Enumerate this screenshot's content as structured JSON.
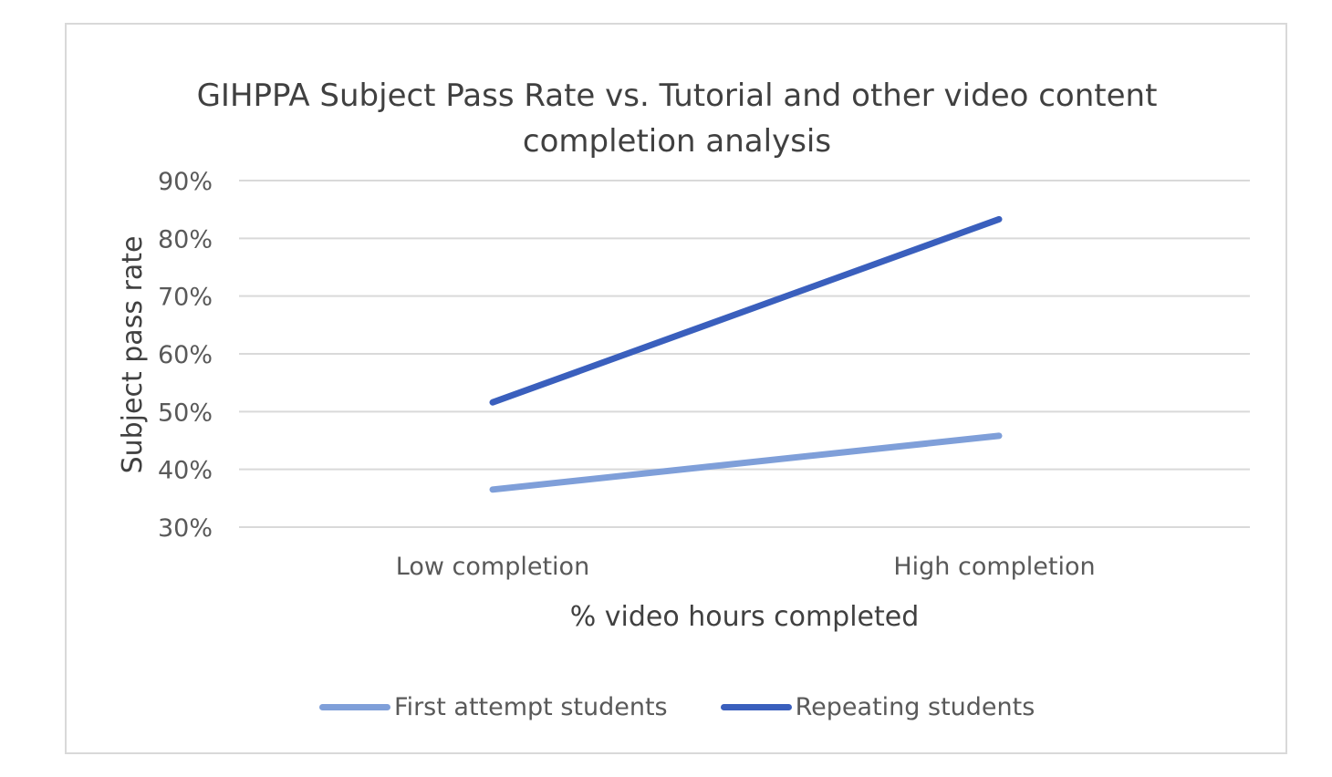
{
  "chart_data": {
    "type": "line",
    "title_lines": [
      "GIHPPA Subject Pass Rate vs. Tutorial and other video content",
      "completion analysis"
    ],
    "xlabel": "% video hours completed",
    "ylabel": "Subject pass rate",
    "categories": [
      "Low completion",
      "High completion"
    ],
    "ylim": [
      0.3,
      0.9
    ],
    "yticks": [
      {
        "value": 0.3,
        "label": "30%"
      },
      {
        "value": 0.4,
        "label": "40%"
      },
      {
        "value": 0.5,
        "label": "50%"
      },
      {
        "value": 0.6,
        "label": "60%"
      },
      {
        "value": 0.7,
        "label": "70%"
      },
      {
        "value": 0.8,
        "label": "80%"
      },
      {
        "value": 0.9,
        "label": "90%"
      }
    ],
    "grid": true,
    "legend_position": "bottom",
    "series": [
      {
        "name": "First attempt students",
        "color": "#7f9fd9",
        "values": [
          0.365,
          0.458
        ]
      },
      {
        "name": "Repeating students",
        "color": "#3a5fbd",
        "values": [
          0.516,
          0.833
        ]
      }
    ]
  }
}
